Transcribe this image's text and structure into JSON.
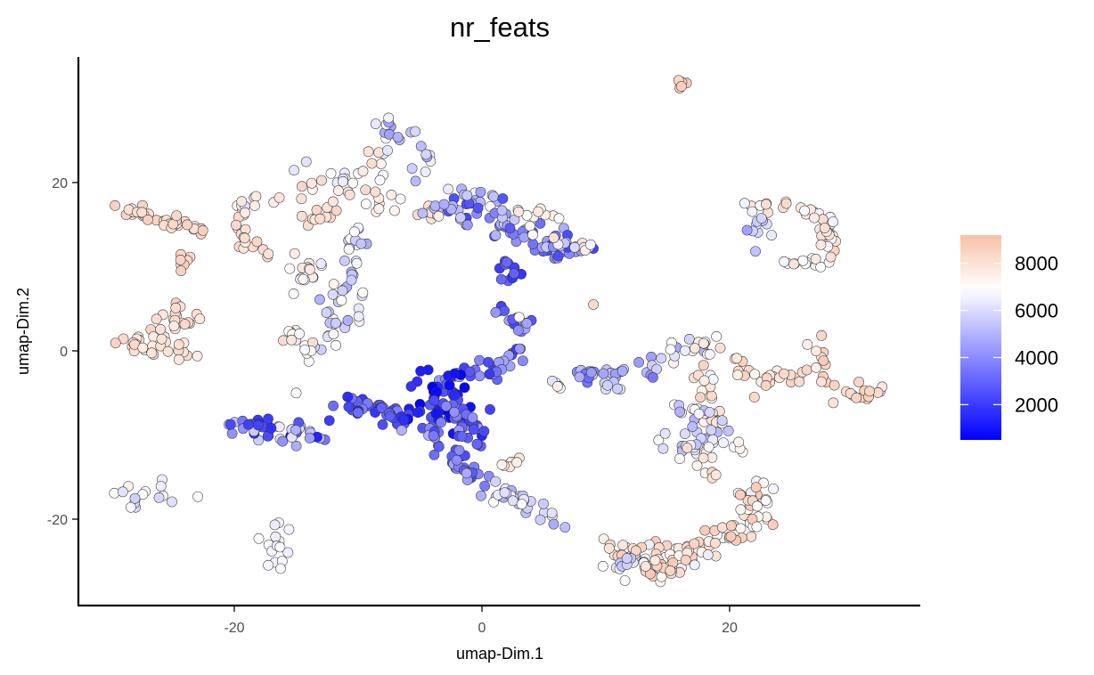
{
  "chart_data": {
    "type": "scatter",
    "title": "nr_feats",
    "xlabel": "umap-Dim.1",
    "ylabel": "umap-Dim.2",
    "xlim": [
      -32,
      35
    ],
    "ylim": [
      -30,
      35
    ],
    "x_ticks": [
      -20,
      0,
      20
    ],
    "y_ticks": [
      -20,
      0,
      20
    ],
    "x_tick_labels": [
      "-20",
      "0",
      "20"
    ],
    "y_tick_labels": [
      "-20",
      "0",
      "20"
    ],
    "grid": false,
    "legend_position": "right",
    "color_scale": {
      "variable": "nr_feats",
      "min": 500,
      "max": 9200,
      "midpoint": 6900,
      "low_color": "#0000ff",
      "mid_color": "#ffffff",
      "high_color": "#f8c0a8",
      "ticks": [
        2000,
        4000,
        6000,
        8000
      ],
      "tick_labels": [
        "2000",
        "4000",
        "6000",
        "8000"
      ]
    },
    "clusters": [
      {
        "path": [
          [
            -29.5,
            17.2
          ],
          [
            -27,
            16.3
          ],
          [
            -24.5,
            15.2
          ],
          [
            -22.5,
            14.6
          ]
        ],
        "n": 40,
        "spread": 0.5,
        "value": [
          7700,
          8600
        ]
      },
      {
        "path": [
          [
            -23.5,
            11.5
          ],
          [
            -24.5,
            9.5
          ]
        ],
        "n": 8,
        "spread": 0.4,
        "value": [
          8200,
          8800
        ]
      },
      {
        "path": [
          [
            -29.5,
            1.2
          ],
          [
            -27,
            0.6
          ],
          [
            -25.5,
            1.5
          ],
          [
            -24.5,
            3.2
          ],
          [
            -24,
            5
          ]
        ],
        "n": 40,
        "spread": 0.7,
        "value": [
          7600,
          8600
        ]
      },
      {
        "path": [
          [
            -24.5,
            0.5
          ],
          [
            -24.2,
            -1
          ]
        ],
        "n": 8,
        "spread": 0.6,
        "value": [
          7200,
          8400
        ]
      },
      {
        "path": [
          [
            -28.5,
            -17
          ],
          [
            -26.5,
            -17.2
          ],
          [
            -25,
            -16.3
          ]
        ],
        "n": 12,
        "spread": 0.8,
        "value": [
          4800,
          7400
        ]
      },
      {
        "path": [
          [
            -28.5,
            -19.2
          ],
          [
            -28,
            -18.2
          ]
        ],
        "n": 4,
        "spread": 0.4,
        "value": [
          5500,
          6800
        ]
      },
      {
        "path": [
          [
            -17,
            -20
          ],
          [
            -16.8,
            -23
          ],
          [
            -16.4,
            -26
          ]
        ],
        "n": 16,
        "spread": 0.5,
        "value": [
          6400,
          7000
        ]
      },
      {
        "path": [
          [
            -20,
            16
          ],
          [
            -18,
            18
          ],
          [
            -15,
            19.5
          ],
          [
            -12,
            20.5
          ],
          [
            -9,
            21.5
          ],
          [
            -8,
            24
          ]
        ],
        "n": 36,
        "spread": 0.7,
        "value": [
          6000,
          8500
        ]
      },
      {
        "path": [
          [
            -20,
            17
          ],
          [
            -19.5,
            15
          ],
          [
            -19,
            13
          ],
          [
            -18,
            11
          ]
        ],
        "n": 16,
        "spread": 0.6,
        "value": [
          7600,
          8500
        ]
      },
      {
        "path": [
          [
            -13,
            15
          ],
          [
            -14.5,
            15.8
          ],
          [
            -11.5,
            17
          ]
        ],
        "n": 12,
        "spread": 0.4,
        "value": [
          7800,
          8500
        ]
      },
      {
        "path": [
          [
            -8,
            27
          ],
          [
            -6.5,
            26
          ],
          [
            -6,
            24.5
          ],
          [
            -5,
            22.5
          ],
          [
            -3.8,
            21
          ]
        ],
        "n": 20,
        "spread": 0.6,
        "value": [
          4500,
          7200
        ]
      },
      {
        "path": [
          [
            -11,
            15
          ],
          [
            -10,
            12
          ],
          [
            -10.5,
            9.5
          ],
          [
            -10.5,
            7
          ],
          [
            -11,
            5
          ],
          [
            -12,
            3
          ],
          [
            -12.8,
            1
          ],
          [
            -14,
            0
          ]
        ],
        "n": 50,
        "spread": 0.8,
        "value": [
          4800,
          7400
        ]
      },
      {
        "path": [
          [
            -15.5,
            11
          ],
          [
            -14,
            10
          ],
          [
            -15,
            8
          ]
        ],
        "n": 16,
        "spread": 0.7,
        "value": [
          6400,
          7800
        ]
      },
      {
        "path": [
          [
            -16.8,
            4
          ],
          [
            -16,
            2.5
          ],
          [
            -14.8,
            1
          ],
          [
            -14,
            0
          ]
        ],
        "n": 12,
        "spread": 0.5,
        "value": [
          6600,
          8400
        ]
      },
      {
        "path": [
          [
            -9.5,
            19
          ],
          [
            -8,
            18
          ],
          [
            -7,
            16.5
          ]
        ],
        "n": 12,
        "spread": 0.8,
        "value": [
          7000,
          8400
        ]
      },
      {
        "path": [
          [
            -6,
            16.5
          ],
          [
            -4.5,
            16.3
          ],
          [
            -3,
            16.3
          ]
        ],
        "n": 8,
        "spread": 0.5,
        "value": [
          7600,
          8200
        ]
      },
      {
        "path": [
          [
            -2.5,
            19
          ],
          [
            0,
            18.5
          ],
          [
            1.5,
            18
          ]
        ],
        "n": 10,
        "spread": 0.5,
        "value": [
          4200,
          7000
        ]
      },
      {
        "path": [
          [
            -3,
            17
          ],
          [
            -1,
            16.3
          ],
          [
            1,
            15.5
          ],
          [
            2.5,
            14
          ],
          [
            4,
            13
          ],
          [
            6,
            12
          ],
          [
            8,
            11.5
          ]
        ],
        "n": 75,
        "spread": 1.0,
        "value": [
          2200,
          5600
        ]
      },
      {
        "path": [
          [
            2.5,
            11
          ],
          [
            2.2,
            9.5
          ],
          [
            2,
            8
          ]
        ],
        "n": 12,
        "spread": 0.4,
        "value": [
          1400,
          3200
        ]
      },
      {
        "path": [
          [
            2,
            15
          ],
          [
            4,
            16
          ],
          [
            6,
            15.5
          ]
        ],
        "n": 10,
        "spread": 0.6,
        "value": [
          6800,
          8400
        ]
      },
      {
        "path": [
          [
            4,
            13.5
          ],
          [
            7,
            13
          ],
          [
            8.5,
            12.5
          ]
        ],
        "n": 12,
        "spread": 0.5,
        "value": [
          5200,
          8200
        ]
      },
      {
        "path": [
          [
            15.8,
            32
          ],
          [
            16.4,
            31.6
          ]
        ],
        "n": 5,
        "spread": 0.2,
        "value": [
          8400,
          8800
        ]
      },
      {
        "path": [
          [
            21,
            17
          ],
          [
            23,
            17
          ],
          [
            25,
            17
          ],
          [
            26.5,
            16.5
          ],
          [
            27.8,
            15
          ],
          [
            28.3,
            13
          ],
          [
            28,
            11
          ],
          [
            26.5,
            10.3
          ]
        ],
        "n": 45,
        "spread": 0.4,
        "value": [
          6600,
          8600
        ]
      },
      {
        "path": [
          [
            22.5,
            16
          ],
          [
            22.3,
            14
          ],
          [
            22.2,
            12
          ]
        ],
        "n": 10,
        "spread": 0.5,
        "value": [
          4400,
          6400
        ]
      },
      {
        "path": [
          [
            24.5,
            11
          ],
          [
            25.5,
            10.5
          ]
        ],
        "n": 5,
        "spread": 0.4,
        "value": [
          6600,
          8000
        ]
      },
      {
        "path": [
          [
            1,
            5
          ],
          [
            3,
            3
          ],
          [
            3.5,
            1
          ],
          [
            2.5,
            -1
          ],
          [
            1,
            -2
          ],
          [
            -1,
            -2.5
          ],
          [
            -3,
            -3
          ],
          [
            -4,
            -5
          ]
        ],
        "n": 45,
        "spread": 0.6,
        "value": [
          1800,
          4800
        ]
      },
      {
        "path": [
          [
            -4.5,
            -3
          ],
          [
            -2.5,
            -4.5
          ],
          [
            -4,
            -6
          ],
          [
            -2,
            -7
          ],
          [
            -5,
            -8
          ],
          [
            -6,
            -7.5
          ]
        ],
        "n": 60,
        "spread": 1.2,
        "value": [
          500,
          2800
        ]
      },
      {
        "path": [
          [
            -6,
            -8
          ],
          [
            -8,
            -7
          ],
          [
            -10,
            -6.5
          ],
          [
            -11.5,
            -7.5
          ]
        ],
        "n": 35,
        "spread": 0.6,
        "value": [
          1200,
          3800
        ]
      },
      {
        "path": [
          [
            -13,
            -10
          ],
          [
            -15,
            -10.3
          ],
          [
            -17,
            -9.5
          ],
          [
            -19,
            -9
          ],
          [
            -20,
            -8.2
          ]
        ],
        "n": 45,
        "spread": 0.7,
        "value": [
          1200,
          6600
        ]
      },
      {
        "path": [
          [
            -2.5,
            -7
          ],
          [
            -1.5,
            -8.5
          ],
          [
            -0.5,
            -10
          ]
        ],
        "n": 20,
        "spread": 0.8,
        "value": [
          2000,
          4400
        ]
      },
      {
        "path": [
          [
            -4,
            -10
          ],
          [
            -3,
            -11
          ],
          [
            -2,
            -13
          ],
          [
            -1,
            -15
          ],
          [
            0,
            -16
          ]
        ],
        "n": 35,
        "spread": 0.8,
        "value": [
          2200,
          5200
        ]
      },
      {
        "path": [
          [
            0,
            -16
          ],
          [
            2,
            -17
          ],
          [
            3.5,
            -18
          ],
          [
            5,
            -19.5
          ],
          [
            6,
            -20.5
          ]
        ],
        "n": 30,
        "spread": 0.6,
        "value": [
          4600,
          7200
        ]
      },
      {
        "path": [
          [
            1.5,
            -13
          ],
          [
            3,
            -14
          ]
        ],
        "n": 6,
        "spread": 0.6,
        "value": [
          7000,
          8200
        ]
      },
      {
        "path": [
          [
            5,
            -4
          ],
          [
            6,
            -4.2
          ]
        ],
        "n": 5,
        "spread": 0.3,
        "value": [
          5800,
          8000
        ]
      },
      {
        "path": [
          [
            8,
            -2.7
          ],
          [
            10,
            -2.5
          ],
          [
            12,
            -2.2
          ],
          [
            14,
            -2.5
          ]
        ],
        "n": 30,
        "spread": 0.5,
        "value": [
          3200,
          5800
        ]
      },
      {
        "path": [
          [
            10,
            -4
          ],
          [
            11.5,
            -4.2
          ]
        ],
        "n": 5,
        "spread": 0.4,
        "value": [
          5200,
          6200
        ]
      },
      {
        "path": [
          [
            15,
            -0.5
          ],
          [
            16.5,
            0.3
          ],
          [
            18,
            0.8
          ]
        ],
        "n": 12,
        "spread": 0.6,
        "value": [
          4600,
          7600
        ]
      },
      {
        "path": [
          [
            18,
            1
          ],
          [
            19,
            0
          ],
          [
            18.5,
            -2
          ],
          [
            18,
            -4
          ],
          [
            18.5,
            -6
          ],
          [
            18.2,
            -8
          ],
          [
            18.5,
            -10
          ]
        ],
        "n": 30,
        "spread": 0.6,
        "value": [
          6600,
          8600
        ]
      },
      {
        "path": [
          [
            20,
            -1
          ],
          [
            22,
            -3
          ],
          [
            24,
            -3
          ],
          [
            26,
            -3
          ]
        ],
        "n": 25,
        "spread": 0.5,
        "value": [
          7200,
          8600
        ]
      },
      {
        "path": [
          [
            27,
            1
          ],
          [
            27.2,
            -1
          ],
          [
            27.5,
            -3.5
          ]
        ],
        "n": 12,
        "spread": 0.5,
        "value": [
          7200,
          8800
        ]
      },
      {
        "path": [
          [
            29.5,
            -5.5
          ],
          [
            31,
            -5
          ],
          [
            32,
            -4.7
          ]
        ],
        "n": 16,
        "spread": 0.5,
        "value": [
          7800,
          8800
        ]
      },
      {
        "path": [
          [
            16,
            -7
          ],
          [
            18,
            -8
          ],
          [
            18.5,
            -10
          ],
          [
            17.5,
            -12
          ],
          [
            16,
            -11
          ],
          [
            15,
            -10.5
          ]
        ],
        "n": 40,
        "spread": 0.8,
        "value": [
          4800,
          7400
        ]
      },
      {
        "path": [
          [
            17,
            -12
          ],
          [
            18,
            -14
          ],
          [
            19,
            -15
          ]
        ],
        "n": 8,
        "spread": 0.6,
        "value": [
          7000,
          8600
        ]
      },
      {
        "path": [
          [
            20.5,
            -11
          ],
          [
            21,
            -12
          ]
        ],
        "n": 4,
        "spread": 0.4,
        "value": [
          6400,
          7400
        ]
      },
      {
        "path": [
          [
            22,
            -16.5
          ],
          [
            22,
            -19
          ],
          [
            21,
            -21.5
          ],
          [
            19,
            -22.5
          ],
          [
            17,
            -23.5
          ],
          [
            15,
            -24.5
          ],
          [
            13.5,
            -25.5
          ],
          [
            12,
            -26
          ]
        ],
        "n": 90,
        "spread": 1.1,
        "value": [
          6400,
          8800
        ]
      },
      {
        "path": [
          [
            10,
            -22.5
          ],
          [
            12,
            -24
          ],
          [
            14,
            -26
          ],
          [
            16,
            -25.5
          ]
        ],
        "n": 30,
        "spread": 0.7,
        "value": [
          7400,
          8900
        ]
      },
      {
        "path": [
          [
            10,
            -25
          ],
          [
            11.5,
            -25.3
          ]
        ],
        "n": 8,
        "spread": 0.6,
        "value": [
          5200,
          6800
        ]
      }
    ],
    "singletons": [
      {
        "x": 9,
        "y": 5.5,
        "value": 8200
      },
      {
        "x": -15,
        "y": -5,
        "value": 6800
      },
      {
        "x": 3,
        "y": 4,
        "value": 7200
      },
      {
        "x": 22,
        "y": -5.5,
        "value": 8300
      },
      {
        "x": -3.5,
        "y": 16,
        "value": 7400
      },
      {
        "x": 17,
        "y": -9,
        "value": 5200
      }
    ]
  }
}
